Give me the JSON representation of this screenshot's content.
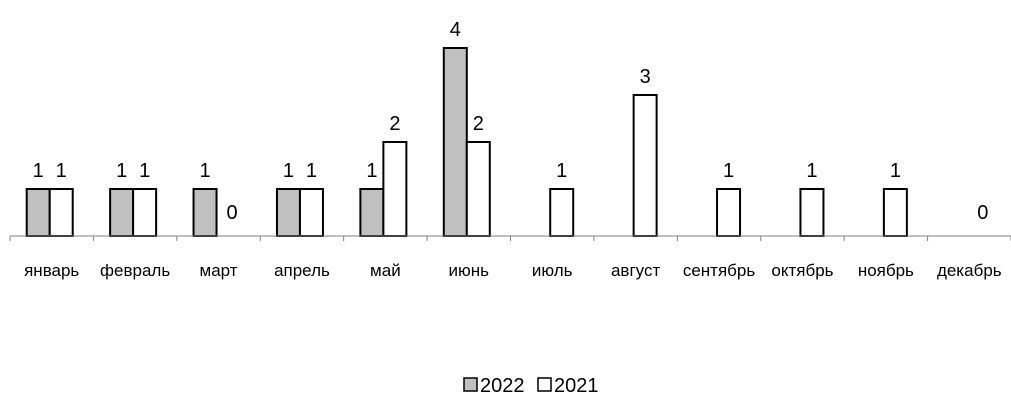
{
  "chart_data": {
    "type": "bar",
    "title": "",
    "xlabel": "",
    "ylabel": "",
    "categories": [
      "январь",
      "февраль",
      "март",
      "апрель",
      "май",
      "июнь",
      "июль",
      "август",
      "сентябрь",
      "октябрь",
      "ноябрь",
      "декабрь"
    ],
    "series": [
      {
        "name": "2022",
        "color": "#c0c0c0",
        "values": [
          1,
          1,
          1,
          1,
          1,
          4,
          null,
          null,
          null,
          null,
          null,
          null
        ],
        "labels": [
          "1",
          "1",
          "1",
          "1",
          "1",
          "4",
          "",
          "",
          "",
          "",
          "",
          ""
        ]
      },
      {
        "name": "2021",
        "color": "#ffffff",
        "values": [
          1,
          1,
          0,
          1,
          2,
          2,
          1,
          3,
          1,
          1,
          1,
          0
        ],
        "labels": [
          "1",
          "1",
          "0",
          "1",
          "2",
          "2",
          "1",
          "3",
          "1",
          "1",
          "1",
          "0"
        ]
      }
    ],
    "ylim": [
      0,
      4
    ],
    "grid": false,
    "legend_position": "bottom"
  }
}
